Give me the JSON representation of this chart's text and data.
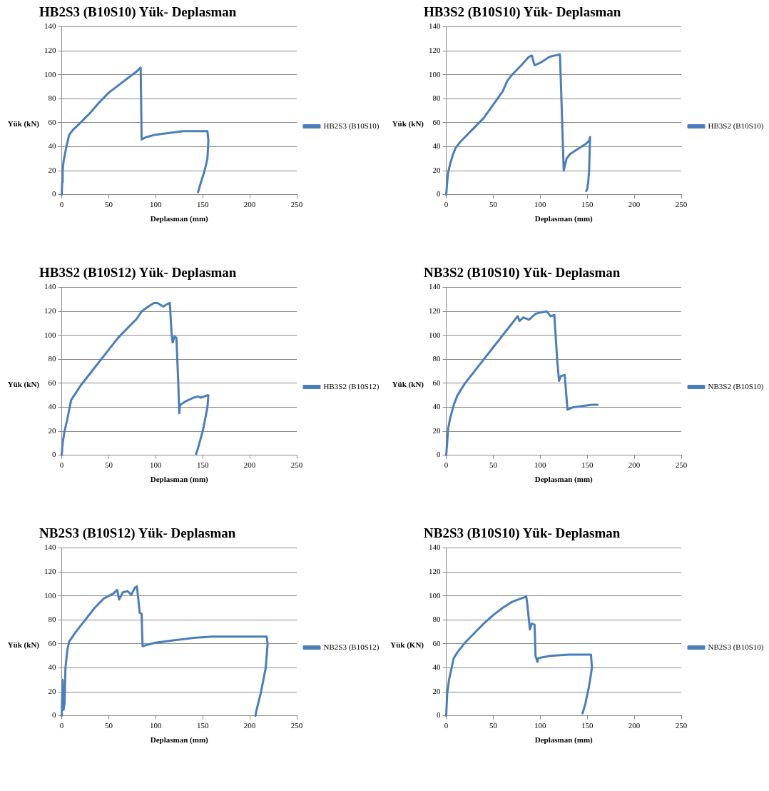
{
  "chart_data": [
    {
      "type": "line",
      "title": "HB2S3 (B10S10) Yük- Deplasman",
      "xlabel": "Deplasman (mm)",
      "ylabel": "Yük (kN)",
      "xlim": [
        0,
        250
      ],
      "xticks": [
        0,
        50,
        100,
        150,
        200,
        250
      ],
      "ylim": [
        0,
        140
      ],
      "yticks": [
        0,
        20,
        40,
        60,
        80,
        100,
        120,
        140
      ],
      "grid": "y",
      "legend": "right",
      "marker": "none",
      "series": [
        {
          "name": "HB2S3 (B10S10)",
          "color": "#4a7ebb",
          "x": [
            0,
            0.5,
            1,
            2,
            5,
            8,
            12,
            20,
            30,
            40,
            50,
            60,
            70,
            80,
            84,
            85,
            90,
            100,
            110,
            120,
            130,
            140,
            150,
            155,
            156,
            155,
            152,
            148,
            145
          ],
          "values": [
            0,
            10,
            20,
            28,
            40,
            50,
            54,
            60,
            68,
            77,
            85,
            91,
            97,
            103,
            106,
            46,
            48,
            50,
            51,
            52,
            53,
            53,
            53,
            53,
            45,
            30,
            20,
            10,
            2
          ]
        }
      ]
    },
    {
      "type": "line",
      "title": "HB3S2 (B10S10) Yük- Deplasman",
      "xlabel": "Deplasman (mm)",
      "ylabel": "Yük (kN)",
      "xlim": [
        0,
        250
      ],
      "xticks": [
        0,
        50,
        100,
        150,
        200,
        250
      ],
      "ylim": [
        0,
        140
      ],
      "yticks": [
        0,
        20,
        40,
        60,
        80,
        100,
        120,
        140
      ],
      "grid": "y",
      "legend": "right",
      "marker": "none",
      "series": [
        {
          "name": "HB3S2 (B10S10)",
          "color": "#4a7ebb",
          "x": [
            0,
            1,
            2,
            4,
            7,
            10,
            15,
            20,
            30,
            40,
            50,
            60,
            65,
            70,
            80,
            88,
            91,
            94,
            100,
            110,
            115,
            121,
            125,
            128,
            132,
            140,
            148,
            152,
            153,
            152,
            151,
            150,
            149
          ],
          "values": [
            0,
            10,
            18,
            25,
            33,
            39,
            44,
            48,
            56,
            64,
            75,
            86,
            95,
            100,
            108,
            115,
            116,
            108,
            110,
            115,
            116,
            117,
            20,
            30,
            34,
            38,
            42,
            45,
            48,
            20,
            10,
            5,
            3
          ]
        }
      ]
    },
    {
      "type": "line",
      "title": "HB3S2 (B10S12) Yük- Deplasman",
      "xlabel": "Deplasman (mm)",
      "ylabel": "Yük (kN)",
      "xlim": [
        0,
        250
      ],
      "xticks": [
        0,
        50,
        100,
        150,
        200,
        250
      ],
      "ylim": [
        0,
        140
      ],
      "yticks": [
        0,
        20,
        40,
        60,
        80,
        100,
        120,
        140
      ],
      "grid": "y",
      "legend": "right",
      "marker": "none",
      "series": [
        {
          "name": "HB3S2 (B10S12)",
          "color": "#4a7ebb",
          "x": [
            0,
            1,
            3,
            6,
            10,
            15,
            20,
            30,
            40,
            50,
            60,
            70,
            80,
            85,
            92,
            98,
            102,
            108,
            112,
            115,
            117,
            118,
            120,
            122,
            124,
            125,
            126,
            132,
            140,
            145,
            148,
            155,
            156,
            155,
            150,
            145,
            143
          ],
          "values": [
            0,
            10,
            20,
            30,
            46,
            52,
            58,
            68,
            78,
            88,
            98,
            106,
            114,
            120,
            124,
            127,
            127,
            124,
            126,
            127,
            100,
            94,
            99,
            98,
            60,
            35,
            42,
            45,
            48,
            49,
            48,
            50,
            50,
            40,
            20,
            6,
            1
          ]
        }
      ]
    },
    {
      "type": "line",
      "title": "NB3S2 (B10S10) Yük- Deplasman",
      "xlabel": "Deplasman (mm)",
      "ylabel": "Yük (kN)",
      "xlim": [
        0,
        250
      ],
      "xticks": [
        0,
        50,
        100,
        150,
        200,
        250
      ],
      "ylim": [
        0,
        140
      ],
      "yticks": [
        0,
        20,
        40,
        60,
        80,
        100,
        120,
        140
      ],
      "grid": "y",
      "legend": "right",
      "marker": "none",
      "series": [
        {
          "name": "NB3S2 (B10S10)",
          "color": "#4a7ebb",
          "x": [
            0,
            1,
            2,
            4,
            8,
            12,
            20,
            30,
            40,
            50,
            60,
            70,
            76,
            78,
            82,
            88,
            95,
            100,
            107,
            111,
            115,
            118,
            120,
            122,
            126,
            129,
            135,
            145,
            155,
            161
          ],
          "values": [
            0,
            10,
            22,
            30,
            42,
            50,
            60,
            70,
            80,
            90,
            100,
            110,
            116,
            112,
            115,
            113,
            118,
            119,
            120,
            116,
            117,
            80,
            62,
            66,
            67,
            38,
            40,
            41,
            42,
            42
          ]
        }
      ]
    },
    {
      "type": "line",
      "title": "NB2S3 (B10S12) Yük- Deplasman",
      "xlabel": "Deplasman (mm)",
      "ylabel": "Yük (kN)",
      "xlim": [
        0,
        250
      ],
      "xticks": [
        0,
        50,
        100,
        150,
        200,
        250
      ],
      "ylim": [
        0,
        140
      ],
      "yticks": [
        0,
        20,
        40,
        60,
        80,
        100,
        120,
        140
      ],
      "grid": "y",
      "legend": "right",
      "marker": "none",
      "series": [
        {
          "name": "NB2S3 (B10S12)",
          "color": "#4a7ebb",
          "x": [
            0,
            1,
            2,
            3,
            4,
            6,
            8,
            15,
            25,
            35,
            45,
            55,
            59,
            61,
            65,
            70,
            74,
            78,
            80,
            83,
            85,
            86,
            90,
            100,
            120,
            140,
            160,
            180,
            200,
            218,
            219,
            217,
            212,
            207,
            206
          ],
          "values": [
            0,
            30,
            5,
            10,
            40,
            55,
            62,
            70,
            80,
            90,
            98,
            102,
            105,
            97,
            103,
            104,
            101,
            107,
            108,
            86,
            85,
            58,
            59,
            61,
            63,
            65,
            66,
            66,
            66,
            66,
            60,
            40,
            20,
            4,
            0
          ]
        }
      ]
    },
    {
      "type": "line",
      "title": "NB2S3 (B10S10) Yük- Deplasman",
      "xlabel": "Deplasman (mm)",
      "ylabel": "Yük (KN)",
      "xlim": [
        0,
        250
      ],
      "xticks": [
        0,
        50,
        100,
        150,
        200,
        250
      ],
      "ylim": [
        0,
        140
      ],
      "yticks": [
        0,
        20,
        40,
        60,
        80,
        100,
        120,
        140
      ],
      "grid": "y",
      "legend": "right",
      "marker": "none",
      "series": [
        {
          "name": "NB2S3 (B10S10)",
          "color": "#4a7ebb",
          "x": [
            0,
            1,
            3,
            8,
            12,
            20,
            30,
            40,
            50,
            60,
            70,
            80,
            84,
            85,
            86,
            88,
            89,
            91,
            94,
            95,
            97,
            98,
            110,
            130,
            150,
            154,
            155,
            152,
            148,
            145
          ],
          "values": [
            0,
            18,
            30,
            48,
            53,
            61,
            69,
            77,
            84,
            90,
            95,
            98,
            99,
            100,
            95,
            80,
            72,
            77,
            76,
            50,
            45,
            48,
            50,
            51,
            51,
            51,
            40,
            25,
            10,
            2
          ]
        }
      ]
    }
  ]
}
